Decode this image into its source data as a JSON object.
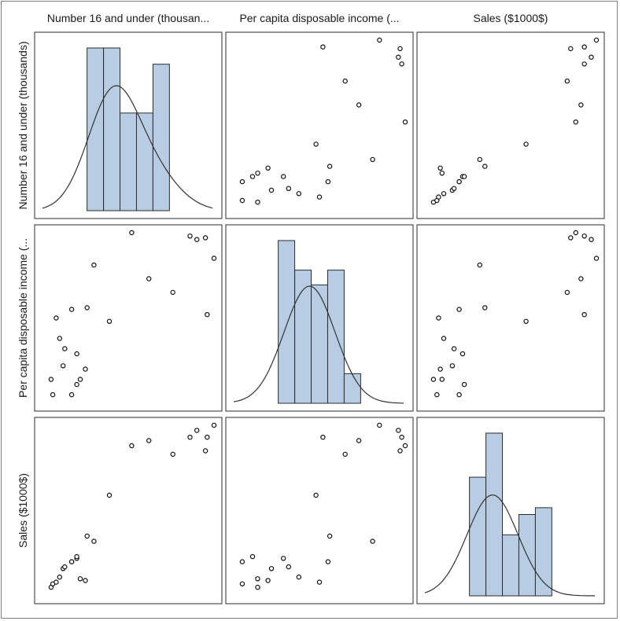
{
  "chart_data": {
    "type": "scatter",
    "variables": [
      {
        "name": "Number 16 and under (thousan...",
        "short": "Number 16 and under (thousands)"
      },
      {
        "name": "Per capita disposable income (...",
        "short": "Per capita disposable income (..."
      },
      {
        "name": "Sales ($1000$)",
        "short": "Sales ($1000$)"
      }
    ],
    "column_labels": [
      "Number 16 and under (thousan...",
      "Per capita disposable income (...",
      "Sales ($1000$)"
    ],
    "row_labels": [
      "Number 16 and under (thousands)",
      "Per capita disposable income (...",
      "Sales ($1000$)"
    ],
    "observations": [
      [
        0.05,
        0.14,
        0.05
      ],
      [
        0.06,
        0.05,
        0.07
      ],
      [
        0.08,
        0.5,
        0.08
      ],
      [
        0.1,
        0.38,
        0.11
      ],
      [
        0.12,
        0.22,
        0.16
      ],
      [
        0.13,
        0.32,
        0.17
      ],
      [
        0.17,
        0.55,
        0.2
      ],
      [
        0.17,
        0.05,
        0.2
      ],
      [
        0.2,
        0.29,
        0.22
      ],
      [
        0.2,
        0.11,
        0.23
      ],
      [
        0.22,
        0.14,
        0.1
      ],
      [
        0.25,
        0.2,
        0.09
      ],
      [
        0.26,
        0.56,
        0.35
      ],
      [
        0.3,
        0.81,
        0.32
      ],
      [
        0.39,
        0.48,
        0.59
      ],
      [
        0.52,
        1.0,
        0.88
      ],
      [
        0.62,
        0.73,
        0.91
      ],
      [
        0.76,
        0.65,
        0.83
      ],
      [
        0.86,
        0.98,
        0.93
      ],
      [
        0.9,
        0.96,
        0.97
      ],
      [
        0.95,
        0.97,
        0.85
      ],
      [
        0.96,
        0.52,
        0.93
      ],
      [
        1.0,
        0.85,
        1.0
      ]
    ],
    "histograms": [
      {
        "bins": [
          0.0,
          0.1,
          0.2,
          0.3,
          0.4,
          0.5
        ],
        "heights": [
          5,
          5,
          3,
          3,
          4.5
        ]
      },
      {
        "bins": [
          0.0,
          0.1,
          0.2,
          0.3,
          0.4,
          0.5
        ],
        "heights": [
          5.5,
          4.5,
          4,
          4.5,
          1
        ]
      },
      {
        "bins": [
          0.0,
          0.1,
          0.2,
          0.3,
          0.4,
          0.5
        ],
        "heights": [
          3.5,
          4.8,
          1.8,
          2.4,
          2.6
        ]
      }
    ],
    "grid": false,
    "legend": "none"
  }
}
